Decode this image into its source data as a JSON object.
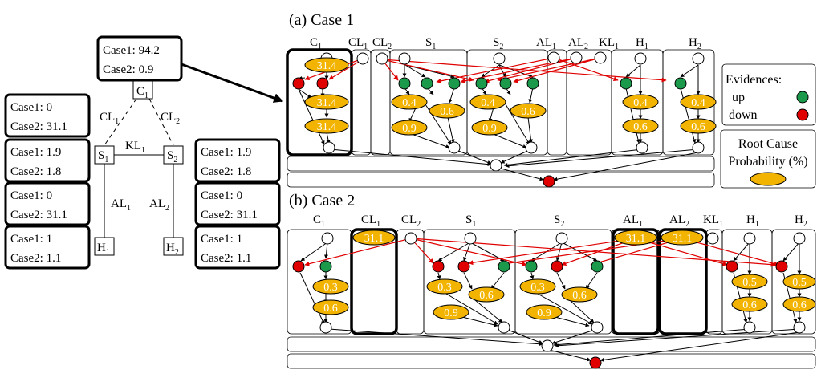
{
  "tree": {
    "root_box": {
      "line1": "Case1: 94.2",
      "line2": "Case2: 0.9"
    },
    "left_boxes": [
      {
        "line1": "Case1: 0",
        "line2": "Case2: 31.1"
      },
      {
        "line1": "Case1: 1.9",
        "line2": "Case2: 1.8"
      },
      {
        "line1": "Case1: 0",
        "line2": "Case2: 31.1"
      },
      {
        "line1": "Case1: 1",
        "line2": "Case2: 1.1"
      }
    ],
    "right_boxes": [
      {
        "line1": "Case1: 1.9",
        "line2": "Case2: 1.8"
      },
      {
        "line1": "Case1: 0",
        "line2": "Case2: 31.1"
      },
      {
        "line1": "Case1: 1",
        "line2": "Case2: 1.1"
      }
    ],
    "nodes": {
      "c1": {
        "base": "C",
        "sub": "1"
      },
      "s1": {
        "base": "S",
        "sub": "1"
      },
      "s2": {
        "base": "S",
        "sub": "2"
      },
      "h1": {
        "base": "H",
        "sub": "1"
      },
      "h2": {
        "base": "H",
        "sub": "2"
      }
    },
    "edge_labels": {
      "cl1": {
        "base": "CL",
        "sub": "1"
      },
      "cl2": {
        "base": "CL",
        "sub": "2"
      },
      "kl1": {
        "base": "KL",
        "sub": "1"
      },
      "al1": {
        "base": "AL",
        "sub": "1"
      },
      "al2": {
        "base": "AL",
        "sub": "2"
      }
    }
  },
  "case1": {
    "title": "(a) Case 1",
    "headers": [
      {
        "base": "C",
        "sub": "1"
      },
      {
        "base": "CL",
        "sub": "1"
      },
      {
        "base": "CL",
        "sub": "2"
      },
      {
        "base": "S",
        "sub": "1"
      },
      {
        "base": "S",
        "sub": "2"
      },
      {
        "base": "AL",
        "sub": "1"
      },
      {
        "base": "AL",
        "sub": "2"
      },
      {
        "base": "KL",
        "sub": "1"
      },
      {
        "base": "H",
        "sub": "1"
      },
      {
        "base": "H",
        "sub": "2"
      }
    ],
    "probs": [
      "31.4",
      "31.4",
      "31.4",
      "0.4",
      "0.6",
      "0.9",
      "0.4",
      "0.6",
      "0.9",
      "0.4",
      "0.6",
      "0.4",
      "0.6"
    ]
  },
  "case2": {
    "title": "(b) Case 2",
    "headers": [
      {
        "base": "C",
        "sub": "1"
      },
      {
        "base": "CL",
        "sub": "1"
      },
      {
        "base": "CL",
        "sub": "2"
      },
      {
        "base": "S",
        "sub": "1"
      },
      {
        "base": "S",
        "sub": "2"
      },
      {
        "base": "AL",
        "sub": "1"
      },
      {
        "base": "AL",
        "sub": "2"
      },
      {
        "base": "KL",
        "sub": "1"
      },
      {
        "base": "H",
        "sub": "1"
      },
      {
        "base": "H",
        "sub": "2"
      }
    ],
    "probs": [
      "0.3",
      "0.6",
      "31.1",
      "0.3",
      "0.6",
      "0.9",
      "0.3",
      "0.6",
      "0.9",
      "31.1",
      "31.1",
      "0.5",
      "0.6",
      "0.5",
      "0.6"
    ]
  },
  "legend": {
    "evidences_title": "Evidences:",
    "up_label": "up",
    "down_label": "down",
    "root_cause_line1": "Root Cause",
    "root_cause_line2": "Probability (%)"
  },
  "colors": {
    "evidence_up": "#1a9a4a",
    "evidence_down": "#e00000",
    "probability": "#f2b400",
    "arrow_red": "#e00000"
  }
}
